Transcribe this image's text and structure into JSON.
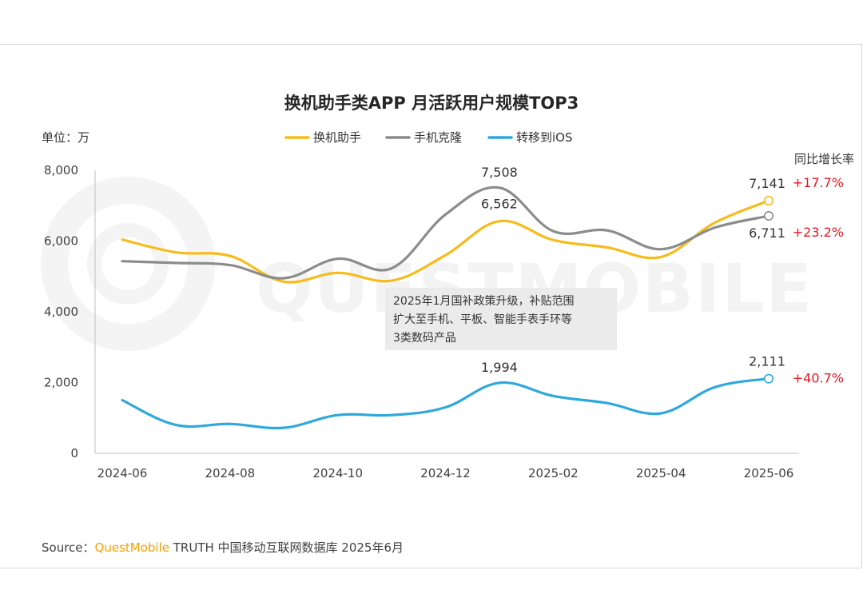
{
  "chart_data": {
    "type": "line",
    "title": "换机助手类APP 月活跃用户规模TOP3",
    "unit_label": "单位：万",
    "growth_header": "同比增长率",
    "watermark": "QUESTMOBILE",
    "x": [
      "2024-06",
      "2024-07",
      "2024-08",
      "2024-09",
      "2024-10",
      "2024-11",
      "2024-12",
      "2025-01",
      "2025-02",
      "2025-03",
      "2025-04",
      "2025-05",
      "2025-06"
    ],
    "x_tick_labels": [
      "2024-06",
      "2024-08",
      "2024-10",
      "2024-12",
      "2025-02",
      "2025-04",
      "2025-06"
    ],
    "y_tick_labels": [
      "0",
      "2,000",
      "4,000",
      "6,000",
      "8,000"
    ],
    "ylim": [
      0,
      8000
    ],
    "grid": false,
    "legend_position": "top-center",
    "series": [
      {
        "name": "换机助手",
        "color": "#f6bc1c",
        "values": [
          6040,
          5680,
          5580,
          4850,
          5100,
          4880,
          5600,
          6562,
          6030,
          5820,
          5550,
          6520,
          7141
        ],
        "labels": [
          {
            "index": 7,
            "text": "6,562"
          },
          {
            "index": 12,
            "text": "7,141"
          }
        ],
        "growth": "+17.7%"
      },
      {
        "name": "手机克隆",
        "color": "#8c8c8c",
        "values": [
          5430,
          5380,
          5320,
          4950,
          5500,
          5230,
          6750,
          7508,
          6280,
          6300,
          5770,
          6380,
          6711
        ],
        "labels": [
          {
            "index": 7,
            "text": "7,508"
          },
          {
            "index": 12,
            "text": "6,711"
          }
        ],
        "growth": "+23.2%"
      },
      {
        "name": "转移到iOS",
        "color": "#2fa8dc",
        "values": [
          1500,
          800,
          830,
          720,
          1080,
          1080,
          1300,
          1994,
          1620,
          1420,
          1130,
          1870,
          2111
        ],
        "labels": [
          {
            "index": 7,
            "text": "1,994"
          },
          {
            "index": 12,
            "text": "2,111"
          }
        ],
        "growth": "+40.7%"
      }
    ],
    "annotation": {
      "lines": [
        "2025年1月国补政策升级，补贴范围",
        "扩大至手机、平板、智能手表手环等",
        "3类数码产品"
      ]
    }
  },
  "source": {
    "prefix": "Source：",
    "brand": "QuestMobile",
    "rest": " TRUTH 中国移动互联网数据库 2025年6月"
  }
}
